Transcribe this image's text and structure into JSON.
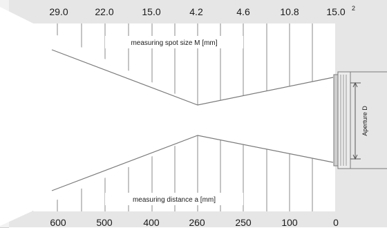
{
  "top_labels": [
    "29.0",
    "22.0",
    "15.0",
    "4.2",
    "4.6",
    "10.8",
    "15.0"
  ],
  "top_footnote": "2",
  "bottom_labels": [
    "600",
    "500",
    "400",
    "260",
    "250",
    "100",
    "0"
  ],
  "spot_size_label": "measuring spot size M [mm]",
  "distance_label": "measuring distance a [mm]",
  "aperture_label": "Aperture D",
  "colors": {
    "frame": "#e6e6e6",
    "panel": "#ffffff",
    "lines": "#7a7a7a",
    "text": "#1a1a1a",
    "accent": "#ee8a73"
  }
}
